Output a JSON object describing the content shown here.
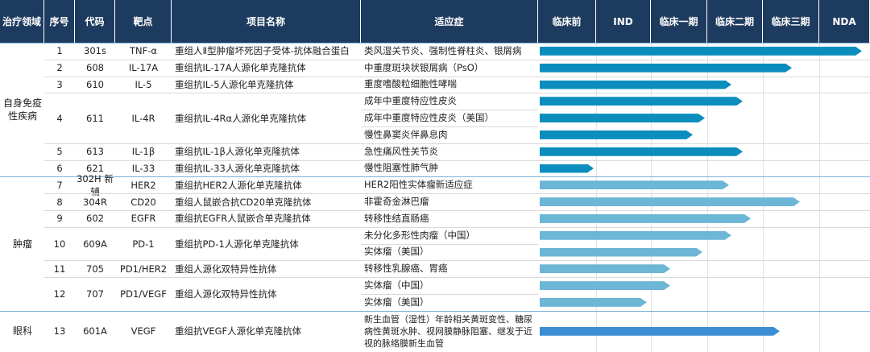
{
  "header": [
    "治疗领域",
    "序号",
    "代码",
    "靶点",
    "项目名称",
    "适应症",
    "临床前",
    "IND",
    "临床一期",
    "临床二期",
    "临床三期",
    "NDA"
  ],
  "groups": [
    {
      "area": "自身免疫性疾病",
      "rows": [
        {
          "no": "1",
          "code": "301s",
          "target": "TNF-α",
          "name": "重组人Ⅱ型肿瘤坏死因子受体-抗体融合蛋白",
          "indications": [
            "类风湿关节炎、强制性脊柱炎、银屑病"
          ]
        },
        {
          "no": "2",
          "code": "608",
          "target": "IL-17A",
          "name": "重组抗IL-17A人源化单克隆抗体",
          "indications": [
            "中重度斑块状银屑病（PsO）"
          ]
        },
        {
          "no": "3",
          "code": "610",
          "target": "IL-5",
          "name": "重组抗IL-5人源化单克隆抗体",
          "indications": [
            "重度嗜酸粒细胞性哮喘"
          ]
        },
        {
          "no": "4",
          "code": "611",
          "target": "IL-4R",
          "name": "重组抗IL-4Rα人源化单克隆抗体",
          "indications": [
            "成年中重度特应性皮炎",
            "成年中重度特应性皮炎（美国）",
            "慢性鼻窦炎伴鼻息肉"
          ]
        },
        {
          "no": "5",
          "code": "613",
          "target": "IL-1β",
          "name": "重组抗IL-1β人源化单克隆抗体",
          "indications": [
            "急性痛风性关节炎"
          ]
        },
        {
          "no": "6",
          "code": "621",
          "target": "IL-33",
          "name": "重组抗IL-33人源化单克隆抗体",
          "indications": [
            "慢性阻塞性肺气肿"
          ]
        }
      ]
    },
    {
      "area": "肿瘤",
      "rows": [
        {
          "no": "7",
          "code": "302H 新辅",
          "target": "HER2",
          "name": "重组抗HER2人源化单克隆抗体",
          "indications": [
            "HER2阳性实体瘤新适应症"
          ]
        },
        {
          "no": "8",
          "code": "304R",
          "target": "CD20",
          "name": "重组人鼠嵌合抗CD20单克隆抗体",
          "indications": [
            "非霍奇金淋巴瘤"
          ]
        },
        {
          "no": "9",
          "code": "602",
          "target": "EGFR",
          "name": "重组抗EGFR人鼠嵌合单克隆抗体",
          "indications": [
            "转移性结直肠癌"
          ]
        },
        {
          "no": "10",
          "code": "609A",
          "target": "PD-1",
          "name": "重组抗PD-1人源化单克隆抗体",
          "indications": [
            "未分化多形性肉瘤（中国）",
            "实体瘤（美国）"
          ]
        },
        {
          "no": "11",
          "code": "705",
          "target": "PD1/HER2",
          "name": "重组人源化双特异性抗体",
          "indications": [
            "转移性乳腺癌、胃癌"
          ]
        },
        {
          "no": "12",
          "code": "707",
          "target": "PD1/VEGF",
          "name": "重组人源化双特异性抗体",
          "indications": [
            "实体瘤（中国）",
            "实体瘤（美国）"
          ]
        }
      ]
    },
    {
      "area": "眼科",
      "rows": [
        {
          "no": "13",
          "code": "601A",
          "target": "VEGF",
          "name": "重组抗VEGF人源化单克隆抗体",
          "indications": [
            "新生血管（湿性）年龄相关黄斑变性、糖尿病性黄斑水肿、视网膜静脉阻塞、继发于近视的脉络膜新生血管"
          ]
        }
      ]
    }
  ]
}
